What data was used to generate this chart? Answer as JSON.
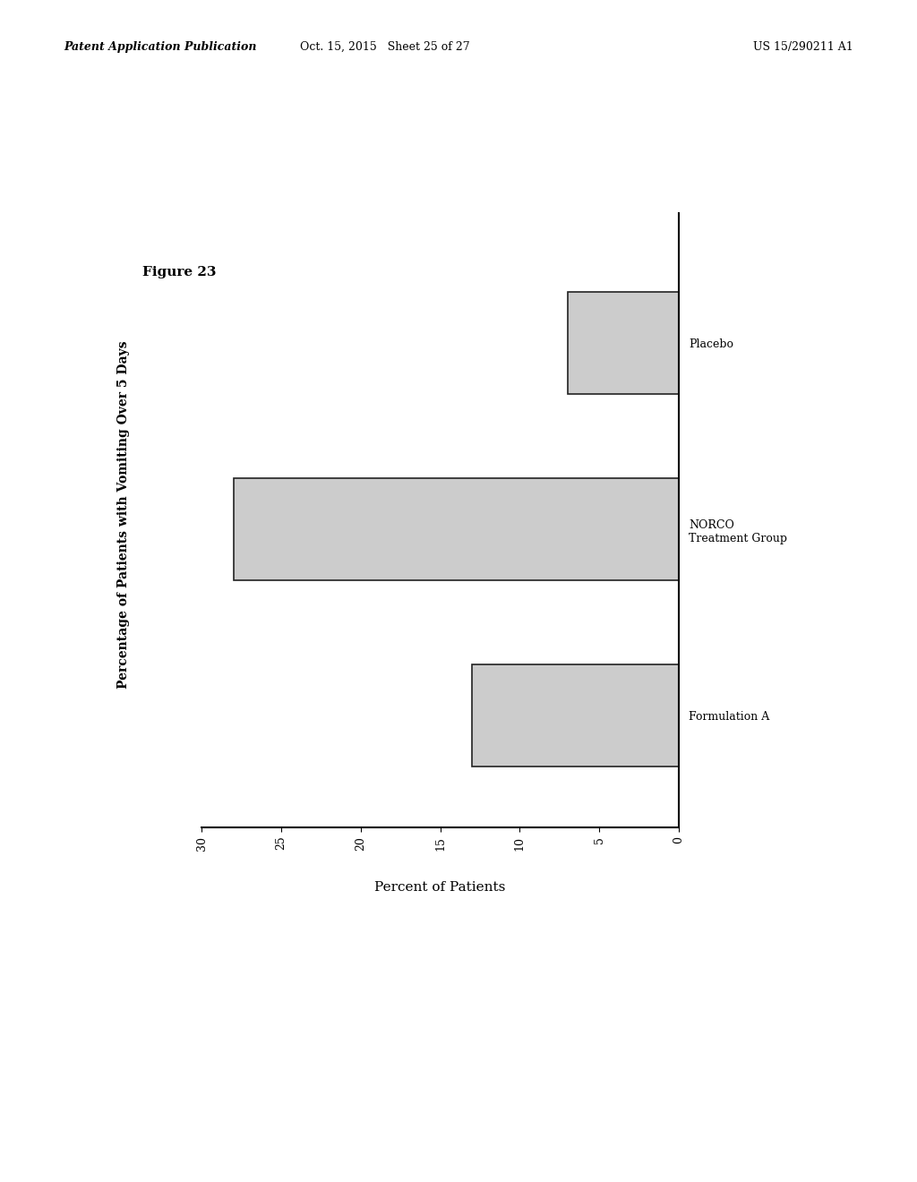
{
  "title": "Figure 23",
  "ylabel_text": "Percentage of Patients with Vomiting Over 5 Days",
  "xlabel_text": "Percent of Patients",
  "categories": [
    "Placebo",
    "NORCO\nTreatment Group",
    "Formulation A"
  ],
  "values": [
    7.0,
    28.0,
    13.0
  ],
  "bar_color": "#cccccc",
  "bar_edgecolor": "#222222",
  "xticks": [
    30,
    25,
    20,
    15,
    10,
    5,
    0
  ],
  "xtick_labels": [
    "30",
    "25",
    "20",
    "15",
    "10",
    "5",
    "0"
  ],
  "background_color": "#ffffff",
  "header_left": "Patent Application Publication",
  "header_center": "Oct. 15, 2015   Sheet 25 of 27",
  "header_right": "US 15/290211 A1"
}
